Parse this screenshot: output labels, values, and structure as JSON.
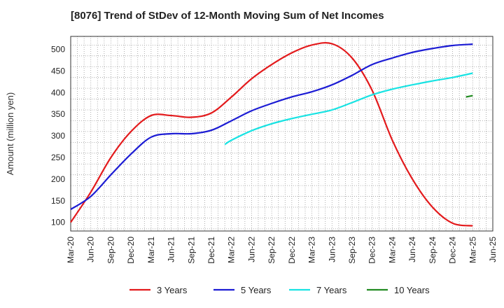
{
  "title": "[8076]  Trend of StDev of 12-Month Moving Sum of Net Incomes",
  "chart_data": {
    "type": "line",
    "title": "[8076]  Trend of StDev of 12-Month Moving Sum of Net Incomes",
    "xlabel": "",
    "ylabel": "Amount (million yen)",
    "ylim": [
      80,
      530
    ],
    "yticks": [
      100,
      150,
      200,
      250,
      300,
      350,
      400,
      450,
      500
    ],
    "xticks": [
      "Mar-20",
      "Jun-20",
      "Sep-20",
      "Dec-20",
      "Mar-21",
      "Jun-21",
      "Sep-21",
      "Dec-21",
      "Mar-22",
      "Jun-22",
      "Sep-22",
      "Dec-22",
      "Mar-23",
      "Jun-23",
      "Sep-23",
      "Dec-23",
      "Mar-24",
      "Jun-24",
      "Sep-24",
      "Dec-24",
      "Mar-25",
      "Jun-25"
    ],
    "grid": true,
    "legend_position": "bottom",
    "series": [
      {
        "name": "3 Years",
        "color": "#e31a1c",
        "points": [
          [
            "Mar-20",
            100
          ],
          [
            "Jun-20",
            170
          ],
          [
            "Sep-20",
            250
          ],
          [
            "Dec-20",
            310
          ],
          [
            "Mar-21",
            347
          ],
          [
            "Jun-21",
            347
          ],
          [
            "Sep-21",
            343
          ],
          [
            "Dec-21",
            353
          ],
          [
            "Mar-22",
            390
          ],
          [
            "Jun-22",
            432
          ],
          [
            "Sep-22",
            465
          ],
          [
            "Dec-22",
            492
          ],
          [
            "Mar-23",
            510
          ],
          [
            "Jun-23",
            513
          ],
          [
            "Sep-23",
            480
          ],
          [
            "Dec-23",
            405
          ],
          [
            "Mar-24",
            290
          ],
          [
            "Jun-24",
            200
          ],
          [
            "Sep-24",
            135
          ],
          [
            "Dec-24",
            98
          ],
          [
            "Mar-25",
            92
          ]
        ]
      },
      {
        "name": "5 Years",
        "color": "#1c1cd4",
        "points": [
          [
            "Mar-20",
            130
          ],
          [
            "Jun-20",
            160
          ],
          [
            "Sep-20",
            210
          ],
          [
            "Dec-20",
            258
          ],
          [
            "Mar-21",
            297
          ],
          [
            "Jun-21",
            305
          ],
          [
            "Sep-21",
            305
          ],
          [
            "Dec-21",
            313
          ],
          [
            "Mar-22",
            335
          ],
          [
            "Jun-22",
            358
          ],
          [
            "Sep-22",
            375
          ],
          [
            "Dec-22",
            390
          ],
          [
            "Mar-23",
            402
          ],
          [
            "Jun-23",
            418
          ],
          [
            "Sep-23",
            440
          ],
          [
            "Dec-23",
            465
          ],
          [
            "Mar-24",
            480
          ],
          [
            "Jun-24",
            493
          ],
          [
            "Sep-24",
            502
          ],
          [
            "Dec-24",
            509
          ],
          [
            "Mar-25",
            512
          ]
        ]
      },
      {
        "name": "7 Years",
        "color": "#19e3e3",
        "points": [
          [
            "Feb-22",
            280
          ],
          [
            "Mar-22",
            290
          ],
          [
            "Jun-22",
            312
          ],
          [
            "Sep-22",
            328
          ],
          [
            "Dec-22",
            340
          ],
          [
            "Mar-23",
            350
          ],
          [
            "Jun-23",
            360
          ],
          [
            "Sep-23",
            377
          ],
          [
            "Dec-23",
            395
          ],
          [
            "Mar-24",
            408
          ],
          [
            "Jun-24",
            418
          ],
          [
            "Sep-24",
            427
          ],
          [
            "Dec-24",
            435
          ],
          [
            "Mar-25",
            445
          ]
        ]
      },
      {
        "name": "10 Years",
        "color": "#228b22",
        "points": [
          [
            "Feb-25",
            390
          ],
          [
            "Mar-25",
            393
          ]
        ]
      }
    ]
  }
}
